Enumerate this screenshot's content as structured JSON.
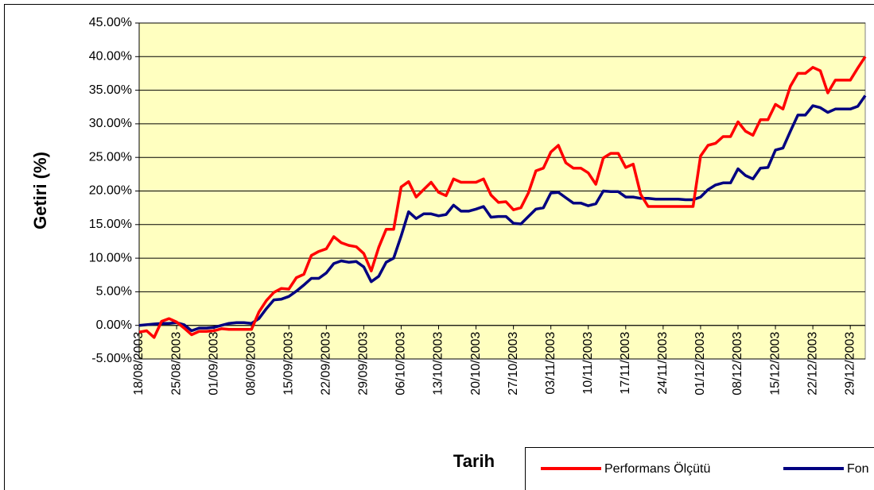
{
  "chart_data": {
    "type": "line",
    "y_axis_label": "Getiri (%)",
    "x_axis_label": "Tarih",
    "categories": [
      "18/08/2003",
      null,
      null,
      null,
      null,
      "25/08/2003",
      null,
      null,
      null,
      null,
      "01/09/2003",
      null,
      null,
      null,
      null,
      "08/09/2003",
      null,
      null,
      null,
      null,
      "15/09/2003",
      null,
      null,
      null,
      null,
      "22/09/2003",
      null,
      null,
      null,
      null,
      "29/09/2003",
      null,
      null,
      null,
      null,
      "06/10/2003",
      null,
      null,
      null,
      null,
      "13/10/2003",
      null,
      null,
      null,
      null,
      "20/10/2003",
      null,
      null,
      null,
      null,
      "27/10/2003",
      null,
      null,
      null,
      null,
      "03/11/2003",
      null,
      null,
      null,
      null,
      "10/11/2003",
      null,
      null,
      null,
      null,
      "17/11/2003",
      null,
      null,
      null,
      null,
      "24/11/2003",
      null,
      null,
      null,
      null,
      "01/12/2003",
      null,
      null,
      null,
      null,
      "08/12/2003",
      null,
      null,
      null,
      null,
      "15/12/2003",
      null,
      null,
      null,
      null,
      "22/12/2003",
      null,
      null,
      null,
      null,
      "29/12/2003",
      null,
      null
    ],
    "series": [
      {
        "name": "Performans Ölçütü",
        "color": "#ff0000",
        "values": [
          -1.0,
          -0.8,
          -1.8,
          0.6,
          1.0,
          0.5,
          -0.4,
          -1.4,
          -0.9,
          -0.9,
          -0.8,
          -0.5,
          -0.6,
          -0.6,
          -0.6,
          -0.6,
          2.0,
          3.7,
          4.9,
          5.5,
          5.4,
          7.1,
          7.6,
          10.4,
          11.0,
          11.4,
          13.2,
          12.3,
          11.9,
          11.7,
          10.7,
          8.1,
          11.6,
          14.3,
          14.3,
          20.6,
          21.4,
          19.1,
          20.2,
          21.3,
          19.8,
          19.3,
          21.8,
          21.3,
          21.3,
          21.3,
          21.8,
          19.4,
          18.3,
          18.4,
          17.2,
          17.5,
          19.7,
          23.0,
          23.4,
          25.8,
          26.8,
          24.2,
          23.4,
          23.4,
          22.7,
          21.0,
          24.9,
          25.6,
          25.6,
          23.5,
          24.0,
          19.5,
          17.7,
          17.7,
          17.7,
          17.7,
          17.7,
          17.7,
          17.7,
          25.2,
          26.8,
          27.1,
          28.1,
          28.1,
          30.3,
          28.9,
          28.3,
          30.6,
          30.6,
          32.9,
          32.2,
          35.6,
          37.5,
          37.5,
          38.4,
          37.9,
          34.6,
          36.5,
          36.5,
          36.5,
          38.3,
          40.0
        ]
      },
      {
        "name": "Fon",
        "color": "#000080",
        "values": [
          0.0,
          0.1,
          0.2,
          0.3,
          0.3,
          0.4,
          0.1,
          -0.8,
          -0.4,
          -0.4,
          -0.3,
          0.0,
          0.3,
          0.4,
          0.4,
          0.3,
          1.0,
          2.5,
          3.8,
          3.9,
          4.3,
          5.1,
          6.0,
          7.0,
          7.0,
          7.8,
          9.2,
          9.6,
          9.4,
          9.5,
          8.7,
          6.5,
          7.3,
          9.4,
          10.0,
          13.3,
          16.9,
          15.9,
          16.6,
          16.6,
          16.3,
          16.5,
          17.9,
          17.0,
          17.0,
          17.3,
          17.7,
          16.1,
          16.2,
          16.2,
          15.2,
          15.1,
          16.2,
          17.3,
          17.5,
          19.7,
          19.8,
          19.0,
          18.2,
          18.2,
          17.8,
          18.1,
          20.0,
          19.9,
          19.9,
          19.1,
          19.1,
          18.9,
          18.9,
          18.8,
          18.8,
          18.8,
          18.8,
          18.7,
          18.7,
          19.1,
          20.2,
          20.9,
          21.2,
          21.2,
          23.3,
          22.3,
          21.8,
          23.4,
          23.5,
          26.1,
          26.4,
          28.9,
          31.3,
          31.3,
          32.7,
          32.4,
          31.7,
          32.2,
          32.2,
          32.2,
          32.6,
          34.2
        ]
      }
    ],
    "ylim": [
      -5,
      45
    ],
    "yticks": [
      {
        "value": -5,
        "label": "-5.00%"
      },
      {
        "value": 0,
        "label": "0.00%"
      },
      {
        "value": 5,
        "label": "5.00%"
      },
      {
        "value": 10,
        "label": "10.00%"
      },
      {
        "value": 15,
        "label": "15.00%"
      },
      {
        "value": 20,
        "label": "20.00%"
      },
      {
        "value": 25,
        "label": "25.00%"
      },
      {
        "value": 30,
        "label": "30.00%"
      },
      {
        "value": 35,
        "label": "35.00%"
      },
      {
        "value": 40,
        "label": "40.00%"
      },
      {
        "value": 45,
        "label": "45.00%"
      }
    ],
    "grid": true,
    "plot_background": "#ffffc0",
    "legend_position": "bottom-right"
  }
}
